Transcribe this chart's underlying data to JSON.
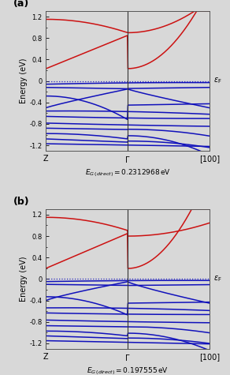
{
  "xlabel_a": "$E_{G\\,(direct)} = 0.2312968\\,\\mathrm{eV}$",
  "xlabel_b": "$E_{G\\,(direct)} = 0.197555\\,\\mathrm{eV}$",
  "ylabel": "Energy (eV)",
  "ylim": [
    -1.3,
    1.3
  ],
  "red_color": "#cc1111",
  "blue_color": "#1111bb",
  "bg_color": "#d8d8d8",
  "n_points": 300
}
